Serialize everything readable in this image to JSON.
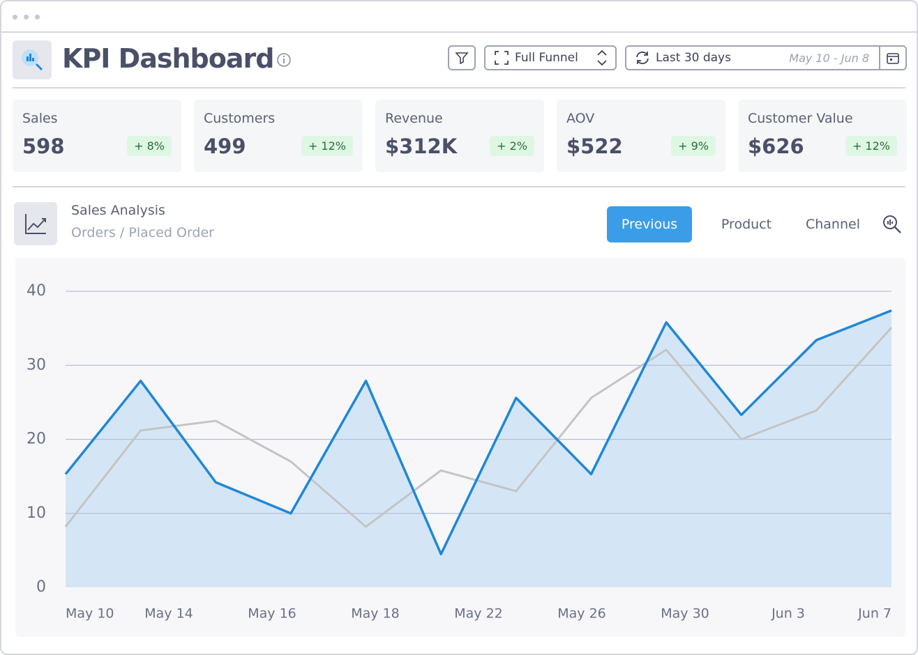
{
  "header": {
    "title": "KPI Dashboard",
    "funnel": "Full Funnel",
    "range": "Last 30 days",
    "dates": "May 10 - Jun 8"
  },
  "kpis": [
    {
      "label": "Sales",
      "value": "598",
      "change": "+ 8%"
    },
    {
      "label": "Customers",
      "value": "499",
      "change": "+ 12%"
    },
    {
      "label": "Revenue",
      "value": "$312K",
      "change": "+ 2%"
    },
    {
      "label": "AOV",
      "value": "$522",
      "change": "+ 9%"
    },
    {
      "label": "Customer Value",
      "value": "$626",
      "change": "+ 12%"
    }
  ],
  "section": {
    "title": "Sales Analysis",
    "subtitle": "Orders / Placed Order",
    "tabs": [
      "Previous",
      "Product",
      "Channel"
    ]
  },
  "chart_data": {
    "type": "line",
    "x_labels": [
      "May 10",
      "May 14",
      "May 16",
      "May 18",
      "May 22",
      "May 26",
      "May 30",
      "Jun 3",
      "Jun 7"
    ],
    "series": [
      {
        "color": "#1f87d6",
        "area_color": "#d4e6f6",
        "values": [
          15.3,
          27.9,
          14.2,
          10.0,
          27.9,
          4.5,
          25.6,
          15.3,
          35.8,
          23.3,
          33.4,
          37.4
        ]
      },
      {
        "color": "#c4c4c4",
        "values": [
          8.2,
          21.2,
          22.5,
          17.0,
          8.2,
          15.8,
          13.0,
          25.6,
          32.1,
          20.0,
          23.9,
          35.1
        ]
      }
    ],
    "ylim": [
      0,
      40
    ],
    "yticks": [
      0,
      10,
      20,
      30,
      40
    ],
    "grid": true
  }
}
